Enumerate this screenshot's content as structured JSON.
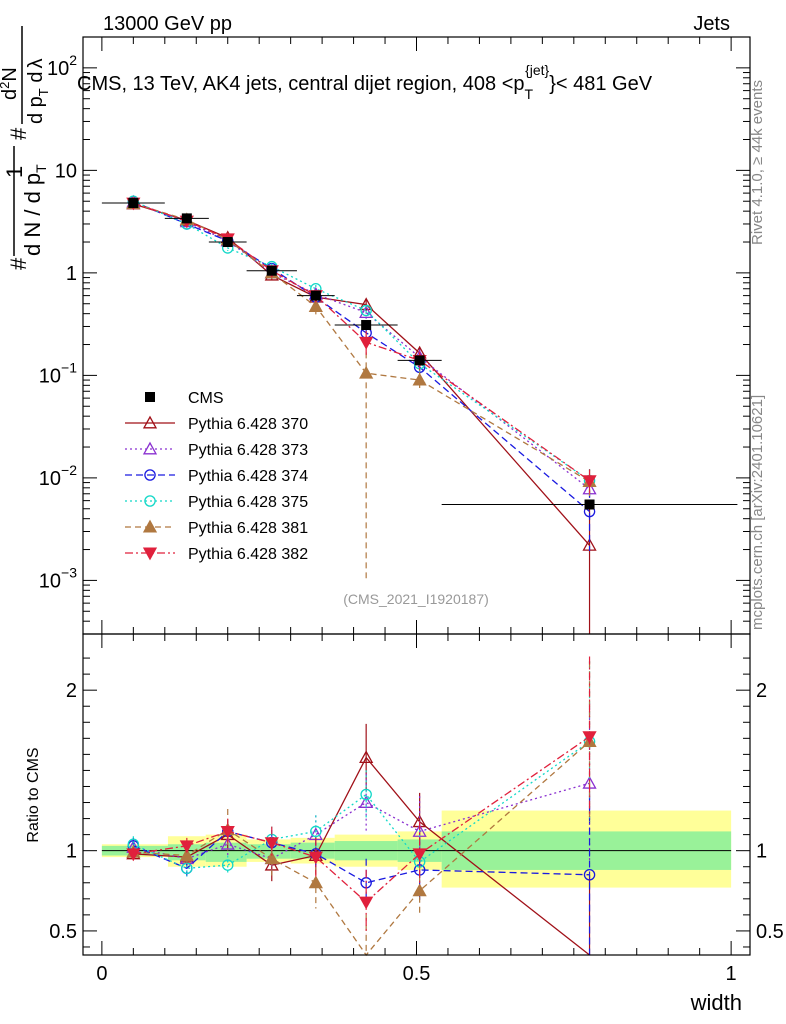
{
  "header": {
    "energy_label": "13000 GeV pp",
    "process_label": "Jets",
    "rivet_label": "Rivet 4.1.0, ≥ 44k events",
    "mcplots_label": "mcplots.cern.ch [arXiv:2401.10621]",
    "analysis_id": "(CMS_2021_I1920187)"
  },
  "chart_data": {
    "type": "scatter",
    "title_parts": {
      "prefix": "CMS, 13 TeV, AK4 jets, central dijet region, 408 <p",
      "sup": "{jet}",
      "sub": "T",
      "suffix": "}< 481 GeV"
    },
    "ylabel_parts": {
      "num1": "#",
      "num2": "1",
      "den1": "d N / d p",
      "den_sub": "T",
      "frac_num1": "#",
      "frac_num2": "d",
      "frac_num_sup": "2",
      "frac_num3": "N",
      "frac_den1": "d p",
      "frac_den_sub": "T",
      "frac_den2": " d",
      "frac_den3": "λ"
    },
    "xlabel": "width",
    "ratio_ylabel": "Ratio to CMS",
    "xlim": [
      -0.03,
      1.03
    ],
    "ylim": [
      0.0003,
      200
    ],
    "ratio_ylim": [
      0.35,
      2.35
    ],
    "x_ticks": [
      "0",
      "0.5",
      "1"
    ],
    "y_ticks": [
      {
        "value": 0.001,
        "base": "10",
        "exp": "−3"
      },
      {
        "value": 0.01,
        "base": "10",
        "exp": "−2"
      },
      {
        "value": 0.1,
        "base": "10",
        "exp": "−1"
      },
      {
        "value": 1,
        "base": "1",
        "exp": ""
      },
      {
        "value": 10,
        "base": "10",
        "exp": ""
      },
      {
        "value": 100,
        "base": "10",
        "exp": "2"
      }
    ],
    "ratio_ticks": [
      {
        "value": 0.5,
        "label": "0.5"
      },
      {
        "value": 1,
        "label": "1"
      },
      {
        "value": 2,
        "label": "2"
      }
    ],
    "data": {
      "name": "CMS",
      "x": [
        0.05,
        0.135,
        0.2,
        0.27,
        0.34,
        0.42,
        0.505,
        0.775
      ],
      "x_err": [
        0.05,
        0.035,
        0.03,
        0.04,
        0.03,
        0.05,
        0.035,
        0.235
      ],
      "y": [
        4.8,
        3.4,
        2.0,
        1.05,
        0.6,
        0.31,
        0.14,
        0.0055
      ],
      "ratio_band_inner": [
        {
          "x0": 0.0,
          "x1": 0.105,
          "lo": 0.97,
          "hi": 1.03
        },
        {
          "x0": 0.105,
          "x1": 0.165,
          "lo": 0.94,
          "hi": 1.04
        },
        {
          "x0": 0.165,
          "x1": 0.23,
          "lo": 0.93,
          "hi": 1.05
        },
        {
          "x0": 0.23,
          "x1": 0.3,
          "lo": 0.95,
          "hi": 1.04
        },
        {
          "x0": 0.3,
          "x1": 0.37,
          "lo": 0.95,
          "hi": 1.05
        },
        {
          "x0": 0.37,
          "x1": 0.47,
          "lo": 0.94,
          "hi": 1.06
        },
        {
          "x0": 0.47,
          "x1": 0.54,
          "lo": 0.93,
          "hi": 1.07
        },
        {
          "x0": 0.54,
          "x1": 1.0,
          "lo": 0.88,
          "hi": 1.12
        }
      ],
      "ratio_band_outer": [
        {
          "x0": 0.0,
          "x1": 0.105,
          "lo": 0.96,
          "hi": 1.04
        },
        {
          "x0": 0.105,
          "x1": 0.165,
          "lo": 0.9,
          "hi": 1.09
        },
        {
          "x0": 0.165,
          "x1": 0.23,
          "lo": 0.9,
          "hi": 1.1
        },
        {
          "x0": 0.23,
          "x1": 0.3,
          "lo": 0.93,
          "hi": 1.07
        },
        {
          "x0": 0.3,
          "x1": 0.37,
          "lo": 0.92,
          "hi": 1.08
        },
        {
          "x0": 0.37,
          "x1": 0.47,
          "lo": 0.9,
          "hi": 1.1
        },
        {
          "x0": 0.47,
          "x1": 0.54,
          "lo": 0.88,
          "hi": 1.12
        },
        {
          "x0": 0.54,
          "x1": 1.0,
          "lo": 0.77,
          "hi": 1.25
        }
      ]
    },
    "series": [
      {
        "name": "Pythia 6.428 370",
        "color": "#a01018",
        "dash": "",
        "marker": "tri-up-open",
        "y": [
          4.7,
          3.25,
          2.2,
          0.95,
          0.58,
          0.49,
          0.165,
          0.0022
        ],
        "ratio": [
          0.98,
          0.96,
          1.1,
          0.91,
          0.97,
          1.58,
          1.18,
          0.35
        ],
        "ratio_err": [
          0.04,
          0.05,
          0.09,
          0.1,
          0.12,
          0.21,
          0.18,
          0.5
        ]
      },
      {
        "name": "Pythia 6.428 373",
        "color": "#8a30d0",
        "dash": "2,3",
        "marker": "tri-up-open",
        "y": [
          4.9,
          3.15,
          2.05,
          1.0,
          0.62,
          0.41,
          0.15,
          0.0078
        ],
        "ratio": [
          1.02,
          0.95,
          1.04,
          0.95,
          1.1,
          1.3,
          1.12,
          1.42
        ],
        "ratio_err": [
          0.05,
          0.06,
          0.07,
          0.09,
          0.12,
          0.18,
          0.22,
          0.5
        ]
      },
      {
        "name": "Pythia 6.428 374",
        "color": "#1a1ae0",
        "dash": "7,4",
        "marker": "circ-open",
        "y": [
          4.95,
          3.0,
          2.05,
          1.1,
          0.58,
          0.26,
          0.12,
          0.0047
        ],
        "ratio": [
          1.03,
          0.89,
          1.12,
          1.05,
          0.98,
          0.8,
          0.88,
          0.85
        ],
        "ratio_err": [
          0.05,
          0.05,
          0.07,
          0.08,
          0.1,
          0.15,
          0.2,
          0.5
        ]
      },
      {
        "name": "Pythia 6.428 375",
        "color": "#12d8c8",
        "dash": "2,3",
        "marker": "circ-open",
        "y": [
          5.0,
          3.0,
          1.75,
          1.15,
          0.7,
          0.43,
          0.13,
          0.0094
        ],
        "ratio": [
          1.04,
          0.89,
          0.91,
          1.07,
          1.12,
          1.35,
          0.93,
          1.68
        ],
        "ratio_err": [
          0.05,
          0.05,
          0.06,
          0.08,
          0.1,
          0.15,
          0.2,
          0.5
        ]
      },
      {
        "name": "Pythia 6.428 381",
        "color": "#b07840",
        "dash": "6,4",
        "marker": "tri-up-filled",
        "y": [
          4.75,
          3.3,
          2.1,
          1.0,
          0.47,
          0.105,
          0.09,
          0.0092
        ],
        "ratio": [
          0.99,
          0.97,
          1.13,
          0.95,
          0.8,
          0.3,
          0.75,
          1.68
        ],
        "ratio_err": [
          0.04,
          0.05,
          0.13,
          0.12,
          0.16,
          0.3,
          0.15,
          0.5
        ]
      },
      {
        "name": "Pythia 6.428 382",
        "color": "#e0203c",
        "dash": "8,3,2,3",
        "marker": "tri-down-filled",
        "y": [
          4.8,
          3.2,
          2.15,
          1.05,
          0.6,
          0.21,
          0.14,
          0.0094
        ],
        "ratio": [
          0.98,
          1.03,
          1.12,
          1.05,
          0.96,
          0.68,
          0.98,
          1.71
        ],
        "ratio_err": [
          0.04,
          0.05,
          0.08,
          0.1,
          0.12,
          0.2,
          0.2,
          0.5
        ]
      }
    ]
  }
}
